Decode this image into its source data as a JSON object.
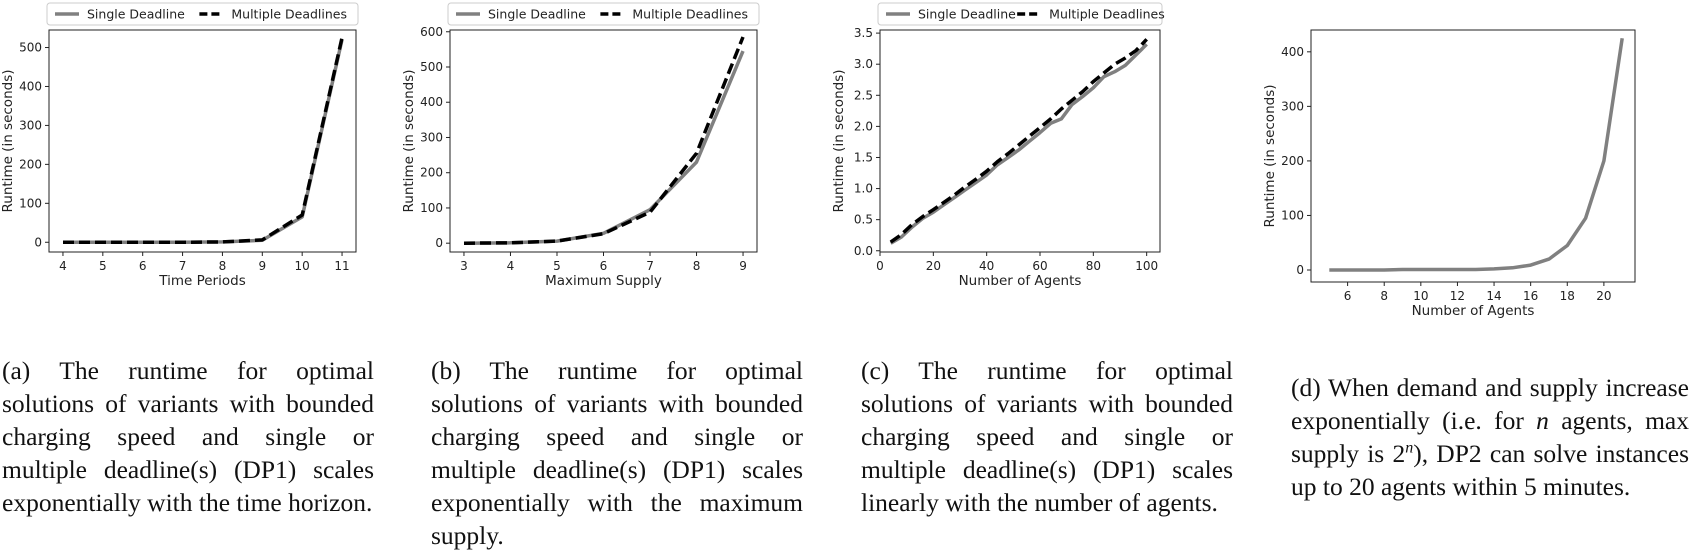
{
  "colors": {
    "single": "#808080",
    "multiple": "#000000",
    "axis": "#222222"
  },
  "legend": {
    "single": "Single Deadline",
    "multiple": "Multiple Deadlines"
  },
  "ylabel": "Runtime (in seconds)",
  "chart_data": [
    {
      "type": "line",
      "xlabel": "Time Periods",
      "ylabel": "Runtime (in seconds)",
      "xlim": [
        3.65,
        11.35
      ],
      "ylim": [
        -25,
        545
      ],
      "xticks": [
        4,
        5,
        6,
        7,
        8,
        9,
        10,
        11
      ],
      "yticks": [
        0,
        100,
        200,
        300,
        400,
        500
      ],
      "legend": "top",
      "series": [
        {
          "name": "Single Deadline",
          "x": [
            4,
            5,
            6,
            7,
            8,
            9,
            10,
            11
          ],
          "y": [
            0,
            0,
            0,
            0,
            1,
            5,
            65,
            520
          ]
        },
        {
          "name": "Multiple Deadlines",
          "x": [
            4,
            5,
            6,
            7,
            8,
            9,
            10,
            11
          ],
          "y": [
            0,
            0,
            0,
            0,
            1,
            6,
            70,
            525
          ]
        }
      ]
    },
    {
      "type": "line",
      "xlabel": "Maximum Supply",
      "ylabel": "Runtime (in seconds)",
      "xlim": [
        2.7,
        9.3
      ],
      "ylim": [
        -25,
        605
      ],
      "xticks": [
        3,
        4,
        5,
        6,
        7,
        8,
        9
      ],
      "yticks": [
        0,
        100,
        200,
        300,
        400,
        500,
        600
      ],
      "legend": "top",
      "series": [
        {
          "name": "Single Deadline",
          "x": [
            3,
            4,
            5,
            6,
            7,
            8,
            9
          ],
          "y": [
            0,
            1,
            6,
            28,
            95,
            230,
            545
          ]
        },
        {
          "name": "Multiple Deadlines",
          "x": [
            3,
            4,
            5,
            6,
            7,
            8,
            9
          ],
          "y": [
            0,
            1,
            6,
            27,
            88,
            255,
            585
          ]
        }
      ]
    },
    {
      "type": "line",
      "xlabel": "Number of Agents",
      "ylabel": "Runtime (in seconds)",
      "xlim": [
        0,
        105
      ],
      "ylim": [
        -0.02,
        3.55
      ],
      "xticks": [
        0,
        20,
        40,
        60,
        80,
        100
      ],
      "yticks": [
        0.0,
        0.5,
        1.0,
        1.5,
        2.0,
        2.5,
        3.0,
        3.5
      ],
      "legend": "top",
      "series": [
        {
          "name": "Single Deadline",
          "x": [
            4,
            8,
            12,
            16,
            20,
            24,
            28,
            32,
            36,
            40,
            44,
            48,
            52,
            56,
            60,
            64,
            68,
            72,
            76,
            80,
            84,
            88,
            92,
            96,
            100
          ],
          "y": [
            0.12,
            0.22,
            0.38,
            0.52,
            0.62,
            0.74,
            0.86,
            0.98,
            1.1,
            1.22,
            1.38,
            1.5,
            1.62,
            1.76,
            1.9,
            2.05,
            2.12,
            2.35,
            2.48,
            2.62,
            2.8,
            2.88,
            2.98,
            3.15,
            3.32
          ]
        },
        {
          "name": "Multiple Deadlines",
          "x": [
            4,
            8,
            12,
            16,
            20,
            24,
            28,
            32,
            36,
            40,
            44,
            48,
            52,
            56,
            60,
            64,
            68,
            72,
            76,
            80,
            84,
            88,
            92,
            96,
            100
          ],
          "y": [
            0.14,
            0.26,
            0.42,
            0.55,
            0.66,
            0.78,
            0.9,
            1.03,
            1.15,
            1.28,
            1.43,
            1.56,
            1.7,
            1.84,
            1.98,
            2.12,
            2.28,
            2.42,
            2.56,
            2.72,
            2.86,
            3.0,
            3.1,
            3.22,
            3.4
          ]
        }
      ]
    },
    {
      "type": "line",
      "xlabel": "Number of Agents",
      "ylabel": "Runtime (in seconds)",
      "xlim": [
        4,
        21.7
      ],
      "ylim": [
        -22,
        440
      ],
      "xticks": [
        6,
        8,
        10,
        12,
        14,
        16,
        18,
        20
      ],
      "yticks": [
        0,
        100,
        200,
        300,
        400
      ],
      "legend": "none",
      "series": [
        {
          "name": "",
          "x": [
            5,
            6,
            7,
            8,
            9,
            10,
            11,
            12,
            13,
            14,
            15,
            16,
            17,
            18,
            19,
            20,
            21
          ],
          "y": [
            0,
            0,
            0,
            0,
            1,
            1,
            1,
            1,
            1,
            2,
            4,
            9,
            20,
            45,
            95,
            200,
            425
          ]
        }
      ]
    }
  ],
  "captions": [
    {
      "label": "(a)",
      "text": "The runtime for optimal solutions of variants with bounded charging speed and single or multiple deadline(s) (DP1) scales exponentially with the time horizon."
    },
    {
      "label": "(b)",
      "text": "The runtime for optimal solutions of variants with bounded charging speed and single or multiple deadline(s) (DP1) scales exponentially with the maximum supply."
    },
    {
      "label": "(c)",
      "text": "The runtime for optimal solutions of variants with bounded charging speed and single or multiple deadline(s) (DP1) scales linearly with the number of agents."
    },
    {
      "label": "(d)",
      "text_before": "When demand and supply increase exponentially (i.e. for",
      "var_n": "n",
      "text_mid": "agents, max supply is",
      "power_base": "2",
      "power_exp": "n",
      "text_after": "), DP2 can solve instances up to 20 agents within 5 minutes."
    }
  ]
}
